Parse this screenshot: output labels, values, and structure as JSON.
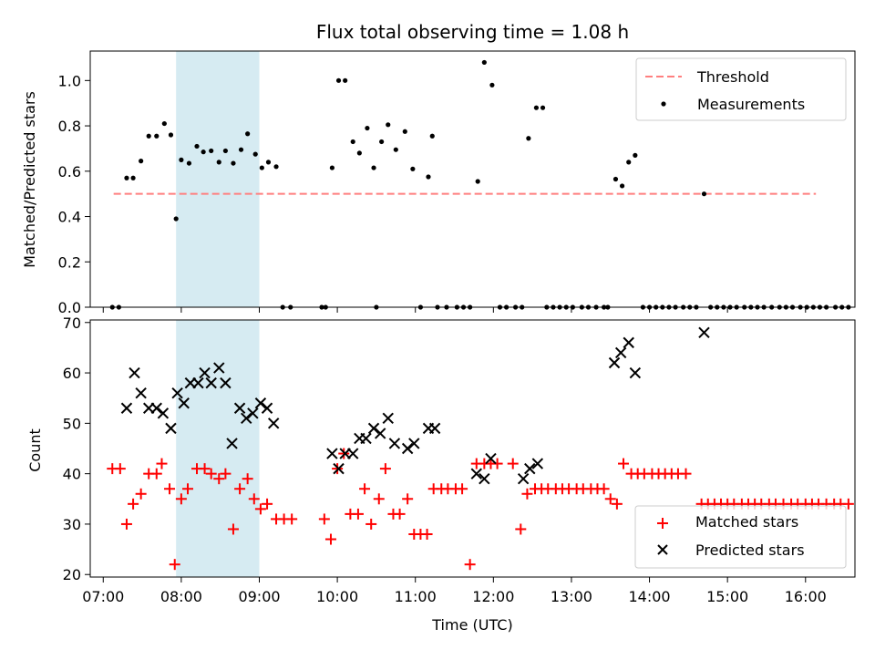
{
  "chart_data": [
    {
      "type": "scatter",
      "title": "Flux total observing time = 1.08 h",
      "xlabel": "",
      "ylabel": "Matched/Predicted stars",
      "xlim": [
        "06:50",
        "16:38"
      ],
      "ylim": [
        0,
        1.13
      ],
      "x_ticks": [
        "07:00",
        "08:00",
        "09:00",
        "10:00",
        "11:00",
        "12:00",
        "13:00",
        "14:00",
        "15:00",
        "16:00"
      ],
      "y_ticks": [
        "0.0",
        "0.2",
        "0.4",
        "0.6",
        "0.8",
        "1.0"
      ],
      "shaded_region": [
        "07:56",
        "09:00"
      ],
      "shaded_color": "#add8e6",
      "legend": "top-right",
      "threshold": {
        "name": "Threshold",
        "y": 0.5,
        "x_start": "07:08",
        "x_end": "16:08",
        "color": "#ff7f7f"
      },
      "series": [
        {
          "name": "Measurements",
          "color": "#000000",
          "points": [
            [
              "07:07",
              0
            ],
            [
              "07:12",
              0
            ],
            [
              "07:18",
              0.57
            ],
            [
              "07:23",
              0.57
            ],
            [
              "07:29",
              0.645
            ],
            [
              "07:35",
              0.755
            ],
            [
              "07:41",
              0.755
            ],
            [
              "07:47",
              0.81
            ],
            [
              "07:52",
              0.76
            ],
            [
              "07:56",
              0.39
            ],
            [
              "08:00",
              0.65
            ],
            [
              "08:06",
              0.635
            ],
            [
              "08:12",
              0.71
            ],
            [
              "08:17",
              0.685
            ],
            [
              "08:23",
              0.69
            ],
            [
              "08:29",
              0.64
            ],
            [
              "08:34",
              0.69
            ],
            [
              "08:40",
              0.635
            ],
            [
              "08:46",
              0.695
            ],
            [
              "08:51",
              0.765
            ],
            [
              "08:57",
              0.675
            ],
            [
              "09:02",
              0.615
            ],
            [
              "09:07",
              0.64
            ],
            [
              "09:13",
              0.62
            ],
            [
              "09:18",
              0
            ],
            [
              "09:24",
              0
            ],
            [
              "09:48",
              0
            ],
            [
              "09:51",
              0
            ],
            [
              "09:56",
              0.615
            ],
            [
              "10:01",
              1.0
            ],
            [
              "10:06",
              1.0
            ],
            [
              "10:12",
              0.73
            ],
            [
              "10:17",
              0.68
            ],
            [
              "10:23",
              0.79
            ],
            [
              "10:28",
              0.615
            ],
            [
              "10:34",
              0.73
            ],
            [
              "10:39",
              0.805
            ],
            [
              "10:45",
              0.695
            ],
            [
              "10:52",
              0.775
            ],
            [
              "10:58",
              0.61
            ],
            [
              "10:30",
              0
            ],
            [
              "11:04",
              0
            ],
            [
              "11:10",
              0.575
            ],
            [
              "11:13",
              0.755
            ],
            [
              "11:17",
              0
            ],
            [
              "11:24",
              0
            ],
            [
              "11:32",
              0
            ],
            [
              "11:37",
              0
            ],
            [
              "11:42",
              0
            ],
            [
              "11:48",
              0.555
            ],
            [
              "11:53",
              1.08
            ],
            [
              "11:59",
              0.98
            ],
            [
              "12:05",
              0
            ],
            [
              "12:10",
              0
            ],
            [
              "12:17",
              0
            ],
            [
              "12:22",
              0
            ],
            [
              "12:27",
              0.745
            ],
            [
              "12:33",
              0.88
            ],
            [
              "12:38",
              0.88
            ],
            [
              "12:41",
              0
            ],
            [
              "12:46",
              0
            ],
            [
              "12:51",
              0
            ],
            [
              "12:56",
              0
            ],
            [
              "13:01",
              0
            ],
            [
              "13:08",
              0
            ],
            [
              "13:13",
              0
            ],
            [
              "13:19",
              0
            ],
            [
              "13:25",
              0
            ],
            [
              "13:28",
              0
            ],
            [
              "13:34",
              0.565
            ],
            [
              "13:39",
              0.535
            ],
            [
              "13:44",
              0.64
            ],
            [
              "13:49",
              0.67
            ],
            [
              "13:55",
              0
            ],
            [
              "14:00",
              0
            ],
            [
              "14:05",
              0
            ],
            [
              "14:10",
              0
            ],
            [
              "14:15",
              0
            ],
            [
              "14:20",
              0
            ],
            [
              "14:26",
              0
            ],
            [
              "14:31",
              0
            ],
            [
              "14:36",
              0
            ],
            [
              "14:42",
              0.5
            ],
            [
              "14:47",
              0
            ],
            [
              "14:52",
              0
            ],
            [
              "14:57",
              0
            ],
            [
              "15:02",
              0
            ],
            [
              "15:07",
              0
            ],
            [
              "15:13",
              0
            ],
            [
              "15:18",
              0
            ],
            [
              "15:23",
              0
            ],
            [
              "15:28",
              0
            ],
            [
              "15:34",
              0
            ],
            [
              "15:40",
              0
            ],
            [
              "15:45",
              0
            ],
            [
              "15:50",
              0
            ],
            [
              "15:56",
              0
            ],
            [
              "16:01",
              0
            ],
            [
              "16:06",
              0
            ],
            [
              "16:11",
              0
            ],
            [
              "16:16",
              0
            ],
            [
              "16:23",
              0
            ],
            [
              "16:28",
              0
            ],
            [
              "16:33",
              0
            ]
          ]
        }
      ]
    },
    {
      "type": "scatter",
      "title": "",
      "xlabel": "Time (UTC)",
      "ylabel": "Count",
      "xlim": [
        "06:50",
        "16:38"
      ],
      "ylim": [
        19.5,
        70.5
      ],
      "x_ticks": [
        "07:00",
        "08:00",
        "09:00",
        "10:00",
        "11:00",
        "12:00",
        "13:00",
        "14:00",
        "15:00",
        "16:00"
      ],
      "y_ticks": [
        "20",
        "30",
        "40",
        "50",
        "60",
        "70"
      ],
      "shaded_region": [
        "07:56",
        "09:00"
      ],
      "shaded_color": "#add8e6",
      "legend": "bottom-right",
      "series": [
        {
          "name": "Matched stars",
          "marker": "+",
          "color": "#ff0000",
          "points": [
            [
              "07:07",
              41
            ],
            [
              "07:13",
              41
            ],
            [
              "07:18",
              30
            ],
            [
              "07:23",
              34
            ],
            [
              "07:29",
              36
            ],
            [
              "07:35",
              40
            ],
            [
              "07:41",
              40
            ],
            [
              "07:45",
              42
            ],
            [
              "07:51",
              37
            ],
            [
              "07:55",
              22
            ],
            [
              "08:00",
              35
            ],
            [
              "08:05",
              37
            ],
            [
              "08:12",
              41
            ],
            [
              "08:18",
              41
            ],
            [
              "08:23",
              40
            ],
            [
              "08:29",
              39
            ],
            [
              "08:34",
              40
            ],
            [
              "08:40",
              29
            ],
            [
              "08:45",
              37
            ],
            [
              "08:51",
              39
            ],
            [
              "08:56",
              35
            ],
            [
              "09:01",
              33
            ],
            [
              "09:06",
              34
            ],
            [
              "09:13",
              31
            ],
            [
              "09:19",
              31
            ],
            [
              "09:25",
              31
            ],
            [
              "09:50",
              31
            ],
            [
              "09:55",
              27
            ],
            [
              "10:00",
              41
            ],
            [
              "10:05",
              44
            ],
            [
              "10:10",
              32
            ],
            [
              "10:16",
              32
            ],
            [
              "10:21",
              37
            ],
            [
              "10:26",
              30
            ],
            [
              "10:32",
              35
            ],
            [
              "10:37",
              41
            ],
            [
              "10:43",
              32
            ],
            [
              "10:48",
              32
            ],
            [
              "10:54",
              35
            ],
            [
              "10:59",
              28
            ],
            [
              "11:04",
              28
            ],
            [
              "11:09",
              28
            ],
            [
              "11:14",
              37
            ],
            [
              "11:20",
              37
            ],
            [
              "11:25",
              37
            ],
            [
              "11:31",
              37
            ],
            [
              "11:36",
              37
            ],
            [
              "11:42",
              22
            ],
            [
              "11:47",
              42
            ],
            [
              "11:53",
              42
            ],
            [
              "11:58",
              42
            ],
            [
              "12:03",
              42
            ],
            [
              "12:15",
              42
            ],
            [
              "12:21",
              29
            ],
            [
              "12:26",
              36
            ],
            [
              "12:32",
              37
            ],
            [
              "12:37",
              37
            ],
            [
              "12:42",
              37
            ],
            [
              "12:48",
              37
            ],
            [
              "12:53",
              37
            ],
            [
              "12:58",
              37
            ],
            [
              "13:04",
              37
            ],
            [
              "13:09",
              37
            ],
            [
              "13:15",
              37
            ],
            [
              "13:20",
              37
            ],
            [
              "13:25",
              37
            ],
            [
              "13:30",
              35
            ],
            [
              "13:35",
              34
            ],
            [
              "13:40",
              42
            ],
            [
              "13:46",
              40
            ],
            [
              "13:51",
              40
            ],
            [
              "13:56",
              40
            ],
            [
              "14:02",
              40
            ],
            [
              "14:07",
              40
            ],
            [
              "14:12",
              40
            ],
            [
              "14:17",
              40
            ],
            [
              "14:22",
              40
            ],
            [
              "14:28",
              40
            ],
            [
              "14:40",
              34
            ],
            [
              "14:45",
              34
            ],
            [
              "14:50",
              34
            ],
            [
              "14:55",
              34
            ],
            [
              "15:00",
              34
            ],
            [
              "15:05",
              34
            ],
            [
              "15:11",
              34
            ],
            [
              "15:16",
              34
            ],
            [
              "15:21",
              34
            ],
            [
              "15:26",
              34
            ],
            [
              "15:32",
              34
            ],
            [
              "15:37",
              34
            ],
            [
              "15:43",
              34
            ],
            [
              "15:49",
              34
            ],
            [
              "15:54",
              34
            ],
            [
              "16:00",
              34
            ],
            [
              "16:05",
              34
            ],
            [
              "16:10",
              34
            ],
            [
              "16:16",
              34
            ],
            [
              "16:22",
              34
            ],
            [
              "16:27",
              34
            ],
            [
              "16:33",
              34
            ]
          ]
        },
        {
          "name": "Predicted stars",
          "marker": "x",
          "color": "#000000",
          "points": [
            [
              "07:18",
              53
            ],
            [
              "07:24",
              60
            ],
            [
              "07:29",
              56
            ],
            [
              "07:35",
              53
            ],
            [
              "07:41",
              53
            ],
            [
              "07:46",
              52
            ],
            [
              "07:52",
              49
            ],
            [
              "07:57",
              56
            ],
            [
              "08:02",
              54
            ],
            [
              "08:07",
              58
            ],
            [
              "08:13",
              58
            ],
            [
              "08:18",
              60
            ],
            [
              "08:23",
              58
            ],
            [
              "08:29",
              61
            ],
            [
              "08:34",
              58
            ],
            [
              "08:39",
              46
            ],
            [
              "08:45",
              53
            ],
            [
              "08:50",
              51
            ],
            [
              "08:55",
              52
            ],
            [
              "09:01",
              54
            ],
            [
              "09:06",
              53
            ],
            [
              "09:11",
              50
            ],
            [
              "09:56",
              44
            ],
            [
              "10:01",
              41
            ],
            [
              "10:06",
              44
            ],
            [
              "10:12",
              44
            ],
            [
              "10:17",
              47
            ],
            [
              "10:22",
              47
            ],
            [
              "10:28",
              49
            ],
            [
              "10:33",
              48
            ],
            [
              "10:39",
              51
            ],
            [
              "10:44",
              46
            ],
            [
              "10:54",
              45
            ],
            [
              "10:59",
              46
            ],
            [
              "11:10",
              49
            ],
            [
              "11:15",
              49
            ],
            [
              "11:47",
              40
            ],
            [
              "11:53",
              39
            ],
            [
              "11:58",
              43
            ],
            [
              "12:23",
              39
            ],
            [
              "12:28",
              41
            ],
            [
              "12:34",
              42
            ],
            [
              "13:33",
              62
            ],
            [
              "13:38",
              64
            ],
            [
              "13:44",
              66
            ],
            [
              "13:49",
              60
            ],
            [
              "14:42",
              68
            ]
          ]
        }
      ]
    }
  ]
}
